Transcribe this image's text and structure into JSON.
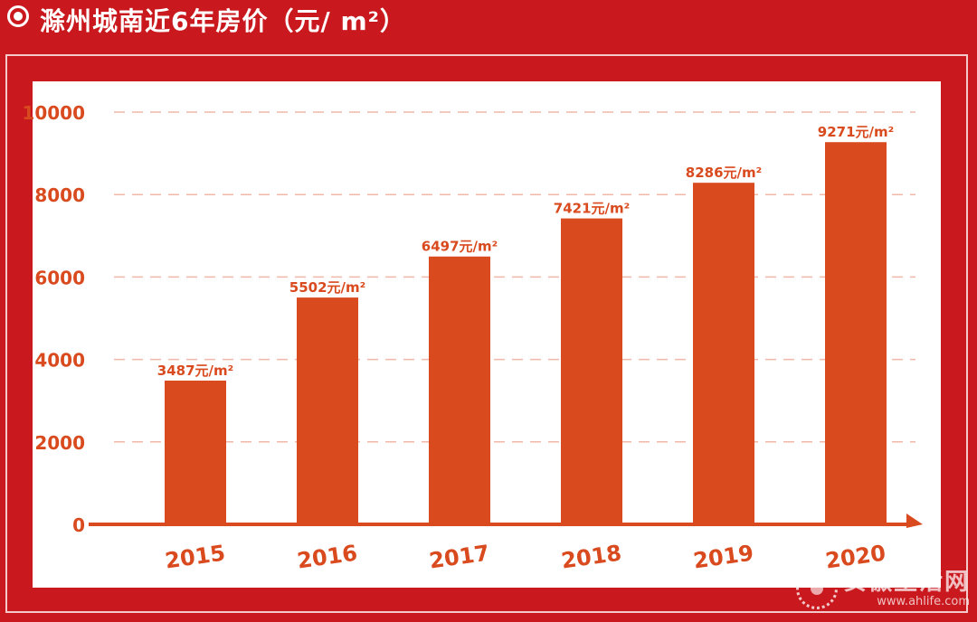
{
  "header": {
    "title": "滁州城南近6年房价（元/ m²）"
  },
  "watermark": {
    "name": "安徽生活网",
    "url": "www.ahlife.com"
  },
  "colors": {
    "background": "#c9191e",
    "panel": "#ffffff",
    "bar": "#d94a1e",
    "label": "#d94a1e",
    "grid": "#f0b8a8"
  },
  "chart_data": {
    "type": "bar",
    "categories": [
      "2015",
      "2016",
      "2017",
      "2018",
      "2019",
      "2020"
    ],
    "values": [
      3487,
      5502,
      6497,
      7421,
      8286,
      9271
    ],
    "value_labels": [
      "3487元/m²",
      "5502元/m²",
      "6497元/m²",
      "7421元/m²",
      "8286元/m²",
      "9271元/m²"
    ],
    "yticks": [
      0,
      2000,
      4000,
      6000,
      8000,
      10000
    ],
    "ylim": [
      0,
      10000
    ],
    "grid": "dashed horizontal",
    "title": "",
    "xlabel": "",
    "ylabel": ""
  }
}
